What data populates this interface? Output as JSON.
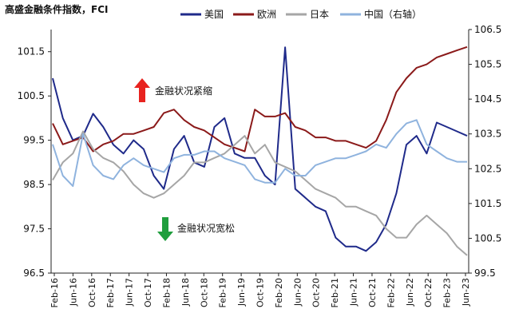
{
  "chart_data": {
    "type": "line",
    "title": "高盛金融条件指数，FCI",
    "y_left": {
      "ticks": [
        "96.5",
        "97.5",
        "98.5",
        "99.5",
        "100.5",
        "101.5"
      ],
      "ylim": [
        96.5,
        102.0
      ]
    },
    "y_right": {
      "ticks": [
        "99.5",
        "100.5",
        "101.5",
        "102.5",
        "103.5",
        "104.5",
        "105.5",
        "106.5"
      ],
      "ylim": [
        99.5,
        106.5
      ]
    },
    "x_ticks": [
      "Feb-16",
      "Jun-16",
      "Oct-16",
      "Feb-17",
      "Jun-17",
      "Oct-17",
      "Feb-18",
      "Jun-18",
      "Oct-18",
      "Feb-19",
      "Jun-19",
      "Oct-19",
      "Feb-20",
      "Jun-20",
      "Oct-20",
      "Feb-21",
      "Jun-21",
      "Oct-21",
      "Feb-22",
      "Jun-22",
      "Oct-22",
      "Feb-23",
      "Jun-23"
    ],
    "legend_position": "top",
    "grid": false,
    "series": [
      {
        "name": "美国",
        "axis": "left",
        "color": "#1f2a8a",
        "values": [
          100.9,
          100.0,
          99.5,
          99.6,
          100.1,
          99.8,
          99.4,
          99.2,
          99.5,
          99.3,
          98.7,
          98.4,
          99.3,
          99.6,
          99.0,
          98.9,
          99.8,
          100.0,
          99.2,
          99.1,
          99.1,
          98.7,
          98.5,
          101.6,
          98.4,
          98.2,
          98.0,
          97.9,
          97.3,
          97.1,
          97.1,
          97.0,
          97.2,
          97.6,
          98.3,
          99.4,
          99.6,
          99.2,
          99.9,
          99.8,
          99.7,
          99.6
        ]
      },
      {
        "name": "欧洲",
        "axis": "right",
        "color": "#8b1a1a",
        "values": [
          103.8,
          103.2,
          103.3,
          103.4,
          103.0,
          103.2,
          103.3,
          103.5,
          103.5,
          103.6,
          103.7,
          104.1,
          104.2,
          103.9,
          103.7,
          103.6,
          103.4,
          103.2,
          103.1,
          103.0,
          104.2,
          104.0,
          104.0,
          104.1,
          103.7,
          103.6,
          103.4,
          103.4,
          103.3,
          103.3,
          103.2,
          103.1,
          103.3,
          103.9,
          104.7,
          105.1,
          105.4,
          105.5,
          105.7,
          105.8,
          105.9,
          106.0
        ]
      },
      {
        "name": "日本",
        "axis": "left",
        "color": "#a6a6a6",
        "values": [
          98.6,
          99.0,
          99.2,
          99.7,
          99.3,
          99.1,
          99.0,
          98.8,
          98.5,
          98.3,
          98.2,
          98.3,
          98.5,
          98.7,
          99.0,
          99.0,
          99.1,
          99.2,
          99.4,
          99.6,
          99.2,
          99.4,
          99.0,
          98.9,
          98.8,
          98.6,
          98.4,
          98.3,
          98.2,
          98.0,
          98.0,
          97.9,
          97.8,
          97.5,
          97.3,
          97.3,
          97.6,
          97.8,
          97.6,
          97.4,
          97.1,
          96.9
        ]
      },
      {
        "name": "中国（右轴）",
        "axis": "right",
        "color": "#8fb3de",
        "values": [
          103.2,
          102.3,
          102.0,
          103.5,
          102.6,
          102.3,
          102.2,
          102.6,
          102.8,
          102.6,
          102.5,
          102.4,
          102.8,
          102.9,
          102.9,
          103.0,
          103.0,
          102.8,
          102.7,
          102.6,
          102.2,
          102.1,
          102.1,
          102.5,
          102.3,
          102.3,
          102.6,
          102.7,
          102.8,
          102.8,
          102.9,
          103.0,
          103.2,
          103.1,
          103.5,
          103.8,
          103.9,
          103.2,
          103.0,
          102.8,
          102.7,
          102.7
        ]
      }
    ],
    "annotations": [
      {
        "text": "金融状况紧缩",
        "arrow": "up",
        "color": "#e8231f"
      },
      {
        "text": "金融状况宽松",
        "arrow": "down",
        "color": "#1f9e3d"
      }
    ]
  }
}
